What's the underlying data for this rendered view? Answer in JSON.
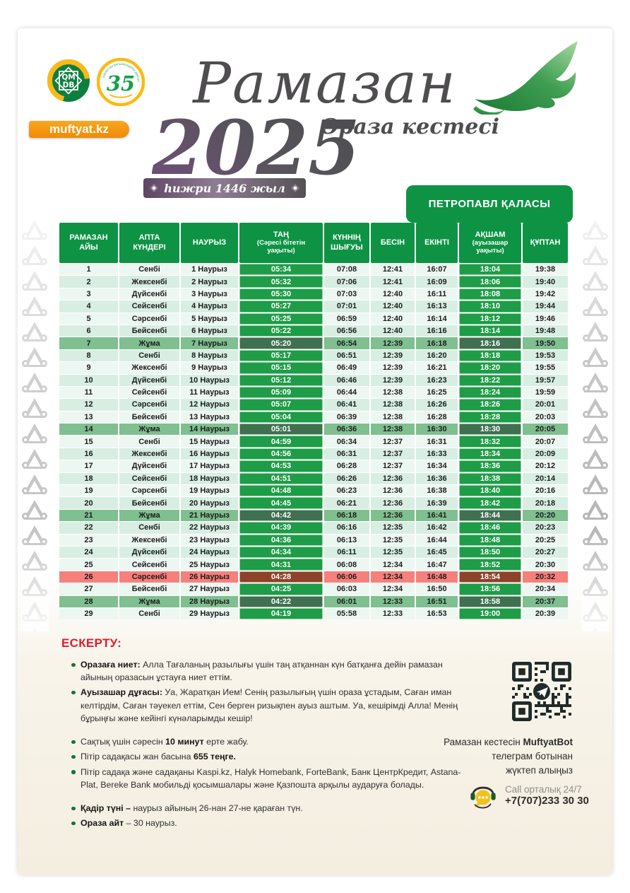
{
  "brand": {
    "site_badge": "muftyat.kz",
    "logo_qmdb_line1": "QM",
    "logo_qmdb_line2": "DB",
    "logo_35_number": "35",
    "logo_35_ring_text": "ҚАЗАҚСТАН МҰСЫЛМАНДАРЫ ДІНИ БАСҚАРМАСЫ"
  },
  "header": {
    "title_script": "Рамазан",
    "year": "2025",
    "subtitle": "Ораза кестесі",
    "hijri_banner": "һижри 1446 жыл",
    "city": "ПЕТРОПАВЛ ҚАЛАСЫ"
  },
  "table": {
    "columns": [
      {
        "lines": [
          "РАМАЗАН",
          "АЙЫ"
        ]
      },
      {
        "lines": [
          "АПТА",
          "КҮНДЕРІ"
        ]
      },
      {
        "lines": [
          "НАУРЫЗ"
        ]
      },
      {
        "lines": [
          "ТАҢ"
        ],
        "sub": [
          "(Сәресі бітетін",
          "уақыты)"
        ]
      },
      {
        "lines": [
          "КҮННІҢ",
          "ШЫҒУЫ"
        ]
      },
      {
        "lines": [
          "БЕСІН"
        ]
      },
      {
        "lines": [
          "ЕКІНТІ"
        ]
      },
      {
        "lines": [
          "АҚШАМ"
        ],
        "sub": [
          "(ауызашар",
          "уақыты)"
        ]
      },
      {
        "lines": [
          "ҚҰПТАН"
        ]
      }
    ],
    "friday_days": [
      7,
      14,
      21,
      28
    ],
    "qadir_day": 26,
    "rows": [
      [
        "1",
        "Сенбі",
        "1 Наурыз",
        "05:34",
        "07:08",
        "12:41",
        "16:07",
        "18:04",
        "19:38"
      ],
      [
        "2",
        "Жексенбі",
        "2 Наурыз",
        "05:32",
        "07:06",
        "12:41",
        "16:09",
        "18:06",
        "19:40"
      ],
      [
        "3",
        "Дүйсенбі",
        "3 Наурыз",
        "05:30",
        "07:03",
        "12:40",
        "16:11",
        "18:08",
        "19:42"
      ],
      [
        "4",
        "Сейсенбі",
        "4 Наурыз",
        "05:27",
        "07:01",
        "12:40",
        "16:13",
        "18:10",
        "19:44"
      ],
      [
        "5",
        "Сәрсенбі",
        "5 Наурыз",
        "05:25",
        "06:59",
        "12:40",
        "16:14",
        "18:12",
        "19:46"
      ],
      [
        "6",
        "Бейсенбі",
        "6 Наурыз",
        "05:22",
        "06:56",
        "12:40",
        "16:16",
        "18:14",
        "19:48"
      ],
      [
        "7",
        "Жұма",
        "7 Наурыз",
        "05:20",
        "06:54",
        "12:39",
        "16:18",
        "18:16",
        "19:50"
      ],
      [
        "8",
        "Сенбі",
        "8 Наурыз",
        "05:17",
        "06:51",
        "12:39",
        "16:20",
        "18:18",
        "19:53"
      ],
      [
        "9",
        "Жексенбі",
        "9 Наурыз",
        "05:15",
        "06:49",
        "12:39",
        "16:21",
        "18:20",
        "19:55"
      ],
      [
        "10",
        "Дүйсенбі",
        "10 Наурыз",
        "05:12",
        "06:46",
        "12:39",
        "16:23",
        "18:22",
        "19:57"
      ],
      [
        "11",
        "Сейсенбі",
        "11 Наурыз",
        "05:09",
        "06:44",
        "12:38",
        "16:25",
        "18:24",
        "19:59"
      ],
      [
        "12",
        "Сәрсенбі",
        "12 Наурыз",
        "05:07",
        "06:41",
        "12:38",
        "16:26",
        "18:26",
        "20:01"
      ],
      [
        "13",
        "Бейсенбі",
        "13 Наурыз",
        "05:04",
        "06:39",
        "12:38",
        "16:28",
        "18:28",
        "20:03"
      ],
      [
        "14",
        "Жұма",
        "14 Наурыз",
        "05:01",
        "06:36",
        "12:38",
        "16:30",
        "18:30",
        "20:05"
      ],
      [
        "15",
        "Сенбі",
        "15 Наурыз",
        "04:59",
        "06:34",
        "12:37",
        "16:31",
        "18:32",
        "20:07"
      ],
      [
        "16",
        "Жексенбі",
        "16 Наурыз",
        "04:56",
        "06:31",
        "12:37",
        "16:33",
        "18:34",
        "20:09"
      ],
      [
        "17",
        "Дүйсенбі",
        "17 Наурыз",
        "04:53",
        "06:28",
        "12:37",
        "16:34",
        "18:36",
        "20:12"
      ],
      [
        "18",
        "Сейсенбі",
        "18 Наурыз",
        "04:51",
        "06:26",
        "12:36",
        "16:36",
        "18:38",
        "20:14"
      ],
      [
        "19",
        "Сәрсенбі",
        "19 Наурыз",
        "04:48",
        "06:23",
        "12:36",
        "16:38",
        "18:40",
        "20:16"
      ],
      [
        "20",
        "Бейсенбі",
        "20 Наурыз",
        "04:45",
        "06:21",
        "12:36",
        "16:39",
        "18:42",
        "20:18"
      ],
      [
        "21",
        "Жұма",
        "21 Наурыз",
        "04:42",
        "06:18",
        "12:36",
        "16:41",
        "18:44",
        "20:20"
      ],
      [
        "22",
        "Сенбі",
        "22 Наурыз",
        "04:39",
        "06:16",
        "12:35",
        "16:42",
        "18:46",
        "20:23"
      ],
      [
        "23",
        "Жексенбі",
        "23 Наурыз",
        "04:36",
        "06:13",
        "12:35",
        "16:44",
        "18:48",
        "20:25"
      ],
      [
        "24",
        "Дүйсенбі",
        "24 Наурыз",
        "04:34",
        "06:11",
        "12:35",
        "16:45",
        "18:50",
        "20:27"
      ],
      [
        "25",
        "Сейсенбі",
        "25 Наурыз",
        "04:31",
        "06:08",
        "12:34",
        "16:47",
        "18:52",
        "20:30"
      ],
      [
        "26",
        "Сәрсенбі",
        "26 Наурыз",
        "04:28",
        "06:06",
        "12:34",
        "16:48",
        "18:54",
        "20:32"
      ],
      [
        "27",
        "Бейсенбі",
        "27 Наурыз",
        "04:25",
        "06:03",
        "12:34",
        "16:50",
        "18:56",
        "20:34"
      ],
      [
        "28",
        "Жұма",
        "28 Наурыз",
        "04:22",
        "06:01",
        "12:33",
        "16:51",
        "18:58",
        "20:37"
      ],
      [
        "29",
        "Сенбі",
        "29 Наурыз",
        "04:19",
        "05:58",
        "12:33",
        "16:53",
        "19:00",
        "20:39"
      ]
    ]
  },
  "notes": {
    "title": "ЕСКЕРТУ:",
    "items": [
      {
        "gap": false,
        "segments": [
          {
            "t": "Оразаға ниет: ",
            "b": true
          },
          {
            "t": "Алла Тағаланың разылығы үшін таң атқаннан күн батқанға дейін рамазан айының оразасын ұстауға ниет еттім.",
            "b": false
          }
        ]
      },
      {
        "gap": false,
        "segments": [
          {
            "t": "Ауызашар дұғасы: ",
            "b": true
          },
          {
            "t": "Уа, Жаратқан Ием! Сенің разылығың үшін ораза ұстадым, Саған иман келтірдім, Саған тәуекел еттім, Сен берген ризықпен ауыз аштым. Уа, кешірімді Алла! Менің бұрыңғы және кейінгі күнәларымды кешір!",
            "b": false
          }
        ]
      },
      {
        "gap": true,
        "segments": [
          {
            "t": "Сақтық үшін сәресін ",
            "b": false
          },
          {
            "t": "10 минут",
            "b": true
          },
          {
            "t": " ерте жабу.",
            "b": false
          }
        ]
      },
      {
        "gap": false,
        "segments": [
          {
            "t": "Пітір садақасы жан басына ",
            "b": false
          },
          {
            "t": "655 теңге.",
            "b": true
          }
        ]
      },
      {
        "gap": false,
        "segments": [
          {
            "t": "Пітір садақа және садақаны Kaspi.kz, Halyk Homebank, ForteBank, Банк ЦентрКредит, Astana-Plat, Bereke Bank мобильді қосымшалары және Қазпошта арқылы аударуға болады.",
            "b": false
          }
        ]
      },
      {
        "gap": true,
        "segments": [
          {
            "t": "Қадір түні – ",
            "b": true
          },
          {
            "t": "наурыз айының 26-нан 27-не қараған түн.",
            "b": false
          }
        ]
      },
      {
        "gap": false,
        "segments": [
          {
            "t": "Ораза айт",
            "b": true
          },
          {
            "t": " – 30 наурыз.",
            "b": false
          }
        ]
      }
    ]
  },
  "telegram": {
    "line1_pre": "Рамазан кестесін ",
    "line1_bold": "MuftyatBot",
    "line2": "телеграм ботынан",
    "line3": "жүктеп алыңыз"
  },
  "call_center": {
    "label": "Call орталық 24/7",
    "phone": "+7(707)233 30 30"
  },
  "colors": {
    "table_header_green": "#0e9345",
    "time_cell_green": "#1e9c47",
    "friday_row_green": "#7fbf90",
    "friday_cell_green": "#3f7050",
    "qadir_row_red": "#f6807b",
    "qadir_cell_brown": "#8e422a",
    "row_light": "#edf7f2",
    "row_alt": "#d8eee3",
    "badge_orange": "#f7941e",
    "notes_title_red": "#e21b2c",
    "banner_purple": "#6d5a72"
  }
}
